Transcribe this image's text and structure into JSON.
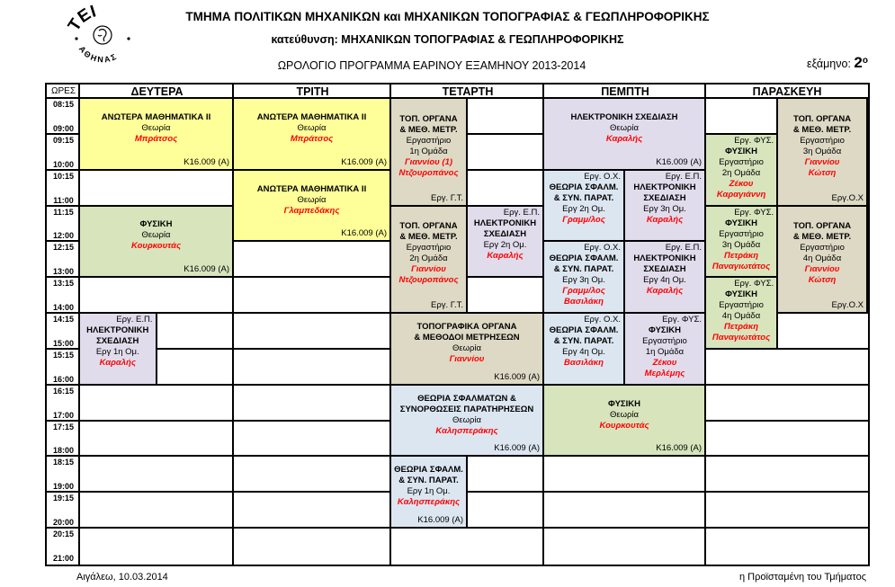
{
  "header": {
    "department_title": "ΤΜΗΜΑ ΠΟΛΙΤΙΚΩΝ ΜΗΧΑΝΙΚΩΝ και ΜΗΧΑΝΙΚΩΝ ΤΟΠΟΓΡΑΦΙΑΣ & ΓΕΩΠΛΗΡΟΦΟΡΙΚΗΣ",
    "direction_title": "κατεύθυνση: ΜΗΧΑΝΙΚΩΝ ΤΟΠΟΓΡΑΦΙΑΣ & ΓΕΩΠΛΗΡΟΦΟΡΙΚΗΣ",
    "schedule_title": "ΩΡΟΛΟΓΙΟ ΠΡΟΓΡΑΜΜΑ ΕΑΡΙΝΟΥ ΕΞΑΜΗΝΟΥ 2013-2014",
    "semester_label": "εξάμηνο:",
    "semester_number": "2",
    "semester_ordinal": "ο",
    "logo_top": "ΤΕΙ",
    "logo_bottom": "ΑΘΗΝΑΣ"
  },
  "table": {
    "hours_header": "ΩΡΕΣ",
    "days": [
      "ΔΕΥΤΕΡΑ",
      "ΤΡΙΤΗ",
      "ΤΕΤΑΡΤΗ",
      "ΠΕΜΠΤΗ",
      "ΠΑΡΑΣΚΕΥΗ"
    ],
    "slots": [
      [
        "08:15",
        "09:00"
      ],
      [
        "09:15",
        "10:00"
      ],
      [
        "10:15",
        "11:00"
      ],
      [
        "11:15",
        "12:00"
      ],
      [
        "12:15",
        "13:00"
      ],
      [
        "13:15",
        "14:00"
      ],
      [
        "14:15",
        "15:00"
      ],
      [
        "15:15",
        "16:00"
      ],
      [
        "16:15",
        "17:00"
      ],
      [
        "17:15",
        "18:00"
      ],
      [
        "18:15",
        "19:00"
      ],
      [
        "19:15",
        "20:00"
      ],
      [
        "20:15",
        "21:00"
      ]
    ],
    "colors": {
      "yellow": "#FFFF99",
      "green": "#D7E4BC",
      "tan": "#DDD9C4",
      "lavender": "#E1DCEC",
      "blue": "#DCE6F1"
    },
    "blocks": [
      {
        "day": 0,
        "start": 0,
        "len": 2,
        "pos": "full",
        "color": "yellow",
        "lines": [
          [
            "b",
            "ΑΝΩΤΕΡΑ ΜΑΘΗΜΑΤΙΚΑ II"
          ],
          [
            "n",
            "Θεωρία"
          ],
          [
            "r",
            "Μπράτσος"
          ]
        ],
        "br": "Κ16.009 (Α)"
      },
      {
        "day": 0,
        "start": 3,
        "len": 2,
        "pos": "full",
        "color": "green",
        "lines": [
          [
            "b",
            "ΦΥΣΙΚΗ"
          ],
          [
            "n",
            "Θεωρία"
          ],
          [
            "r",
            "Κουρκουτάς"
          ]
        ],
        "br": "Κ16.009 (Α)"
      },
      {
        "day": 0,
        "start": 6,
        "len": 2,
        "pos": "left",
        "color": "lavender",
        "tr": "Εργ. Ε.Π.",
        "lines": [
          [
            "b",
            "ΗΛΕΚΤΡΟΝΙΚΗ"
          ],
          [
            "b",
            "ΣΧΕΔΙΑΣΗ"
          ],
          [
            "n",
            "Εργ 1η Ομ."
          ],
          [
            "r",
            "Καραλής"
          ]
        ]
      },
      {
        "day": 1,
        "start": 0,
        "len": 2,
        "pos": "full",
        "color": "yellow",
        "lines": [
          [
            "b",
            "ΑΝΩΤΕΡΑ ΜΑΘΗΜΑΤΙΚΑ II"
          ],
          [
            "n",
            "Θεωρία"
          ],
          [
            "r",
            "Μπράτσος"
          ]
        ],
        "br": "Κ16.009 (Α)"
      },
      {
        "day": 1,
        "start": 2,
        "len": 2,
        "pos": "full",
        "color": "yellow",
        "lines": [
          [
            "b",
            "ΑΝΩΤΕΡΑ ΜΑΘΗΜΑΤΙΚΑ II"
          ],
          [
            "n",
            "Θεωρία"
          ],
          [
            "r",
            "Γλαμπεδάκης"
          ]
        ],
        "br": "Κ16.009 (Α)"
      },
      {
        "day": 2,
        "start": 0,
        "len": 3,
        "pos": "left",
        "color": "tan",
        "lines": [
          [
            "b",
            "ΤΟΠ. ΟΡΓΑΝΑ"
          ],
          [
            "b",
            "& ΜΕΘ. ΜΕΤΡ."
          ],
          [
            "n",
            "Εργαστήριο"
          ],
          [
            "n",
            "1η Ομάδα"
          ],
          [
            "r",
            "Γιαννίου (1)"
          ],
          [
            "r",
            "Ντζουροπάνος"
          ]
        ],
        "br": "Εργ. Γ.Τ."
      },
      {
        "day": 2,
        "start": 3,
        "len": 3,
        "pos": "left",
        "color": "tan",
        "lines": [
          [
            "b",
            "ΤΟΠ. ΟΡΓΑΝΑ"
          ],
          [
            "b",
            "& ΜΕΘ. ΜΕΤΡ."
          ],
          [
            "n",
            "Εργαστήριο"
          ],
          [
            "n",
            "2η Ομάδα"
          ],
          [
            "r",
            "Γιαννίου"
          ],
          [
            "r",
            "Ντζουροπάνος"
          ]
        ],
        "br": "Εργ. Γ.Τ."
      },
      {
        "day": 2,
        "start": 3,
        "len": 2,
        "pos": "right",
        "color": "lavender",
        "tr": "Εργ. Ε.Π.",
        "lines": [
          [
            "b",
            "ΗΛΕΚΤΡΟΝΙΚΗ"
          ],
          [
            "b",
            "ΣΧΕΔΙΑΣΗ"
          ],
          [
            "n",
            "Εργ 2η Ομ."
          ],
          [
            "r",
            "Καραλής"
          ]
        ]
      },
      {
        "day": 2,
        "start": 6,
        "len": 2,
        "pos": "full",
        "color": "tan",
        "lines": [
          [
            "b",
            "ΤΟΠΟΓΡΑΦΙΚΑ ΟΡΓΑΝΑ"
          ],
          [
            "b",
            "& ΜΕΘΟΔΟΙ ΜΕΤΡΗΣΕΩΝ"
          ],
          [
            "n",
            "Θεωρία"
          ],
          [
            "r",
            "Γιαννίου"
          ]
        ],
        "br": "Κ16.009 (Α)"
      },
      {
        "day": 2,
        "start": 8,
        "len": 2,
        "pos": "full",
        "color": "blue",
        "lines": [
          [
            "b",
            "ΘΕΩΡΙΑ ΣΦΑΛΜΑΤΩΝ &"
          ],
          [
            "b",
            "ΣΥΝΟΡΘΩΣΕΙΣ ΠΑΡΑΤΗΡΗΣΕΩΝ"
          ],
          [
            "n",
            "Θεωρία"
          ],
          [
            "r",
            "Καλησπεράκης"
          ]
        ],
        "br": "Κ16.009 (Α)"
      },
      {
        "day": 2,
        "start": 10,
        "len": 2,
        "pos": "left",
        "color": "blue",
        "lines": [
          [
            "b",
            "ΘΕΩΡΙΑ ΣΦΑΛΜ."
          ],
          [
            "b",
            "& ΣΥΝ.  ΠΑΡΑΤ."
          ],
          [
            "n",
            "Εργ 1η Ομ."
          ],
          [
            "r",
            "Καλησπεράκης"
          ]
        ],
        "br": "Κ16.009 (Α)"
      },
      {
        "day": 3,
        "start": 0,
        "len": 2,
        "pos": "full",
        "color": "lavender",
        "lines": [
          [
            "b",
            "ΗΛΕΚΤΡΟΝΙΚΗ ΣΧΕΔΙΑΣΗ"
          ],
          [
            "n",
            "Θεωρία"
          ],
          [
            "r",
            "Καραλής"
          ]
        ],
        "br": "Κ16.009 (Α)"
      },
      {
        "day": 3,
        "start": 2,
        "len": 2,
        "pos": "left",
        "color": "blue",
        "tr": "Εργ. Ο.Χ.",
        "lines": [
          [
            "b",
            "ΘΕΩΡΙΑ ΣΦΑΛΜ."
          ],
          [
            "b",
            "& ΣΥΝ.  ΠΑΡΑΤ."
          ],
          [
            "n",
            "Εργ 2η Ομ."
          ],
          [
            "r",
            "Γραμμ/λος"
          ]
        ]
      },
      {
        "day": 3,
        "start": 2,
        "len": 2,
        "pos": "right",
        "color": "lavender",
        "tr": "Εργ. Ε.Π.",
        "lines": [
          [
            "b",
            "ΗΛΕΚΤΡΟΝΙΚΗ"
          ],
          [
            "b",
            "ΣΧΕΔΙΑΣΗ"
          ],
          [
            "n",
            "Εργ 3η Ομ."
          ],
          [
            "r",
            "Καραλής"
          ]
        ]
      },
      {
        "day": 3,
        "start": 4,
        "len": 2,
        "pos": "left",
        "color": "blue",
        "tr": "Εργ. Ο.Χ.",
        "lines": [
          [
            "b",
            "ΘΕΩΡΙΑ ΣΦΑΛΜ."
          ],
          [
            "b",
            "& ΣΥΝ.  ΠΑΡΑΤ."
          ],
          [
            "n",
            "Εργ 3η Ομ."
          ],
          [
            "r",
            "Γραμμ/λος"
          ],
          [
            "r",
            "Βασιλάκη"
          ]
        ]
      },
      {
        "day": 3,
        "start": 4,
        "len": 2,
        "pos": "right",
        "color": "lavender",
        "tr": "Εργ. Ε.Π.",
        "lines": [
          [
            "b",
            "ΗΛΕΚΤΡΟΝΙΚΗ"
          ],
          [
            "b",
            "ΣΧΕΔΙΑΣΗ"
          ],
          [
            "n",
            "Εργ 4η Ομ."
          ],
          [
            "r",
            "Καραλής"
          ]
        ]
      },
      {
        "day": 3,
        "start": 6,
        "len": 2,
        "pos": "left",
        "color": "blue",
        "tr": "Εργ. Ο.Χ.",
        "lines": [
          [
            "b",
            "ΘΕΩΡΙΑ ΣΦΑΛΜ."
          ],
          [
            "b",
            "& ΣΥΝ.  ΠΑΡΑΤ."
          ],
          [
            "n",
            "Εργ 4η Ομ."
          ],
          [
            "r",
            "Βασιλάκη"
          ]
        ]
      },
      {
        "day": 3,
        "start": 6,
        "len": 2,
        "pos": "right",
        "color": "lavender",
        "tr": "Εργ. ΦΥΣ.",
        "lines": [
          [
            "b",
            "ΦΥΣΙΚΗ"
          ],
          [
            "n",
            "Εργαστήριο"
          ],
          [
            "n",
            "1η Ομάδα"
          ],
          [
            "r",
            "Ζέκου"
          ],
          [
            "r",
            "Μερλέμης"
          ]
        ]
      },
      {
        "day": 3,
        "start": 8,
        "len": 2,
        "pos": "full",
        "color": "green",
        "lines": [
          [
            "b",
            "ΦΥΣΙΚΗ"
          ],
          [
            "n",
            "Θεωρία"
          ],
          [
            "r",
            "Κουρκουτάς"
          ]
        ],
        "br": "Κ16.009 (Α)"
      },
      {
        "day": 4,
        "start": 0,
        "len": 3,
        "pos": "right",
        "color": "tan",
        "lines": [
          [
            "b",
            "ΤΟΠ. ΟΡΓΑΝΑ"
          ],
          [
            "b",
            "& ΜΕΘ. ΜΕΤΡ."
          ],
          [
            "n",
            "Εργαστήριο"
          ],
          [
            "n",
            "3η Ομάδα"
          ],
          [
            "r",
            "Γιαννίου"
          ],
          [
            "r",
            "Κώτση"
          ]
        ],
        "br": "Εργ.Ο.Χ"
      },
      {
        "day": 4,
        "start": 1,
        "len": 2,
        "pos": "left",
        "color": "green",
        "tr": "Εργ. ΦΥΣ.",
        "lines": [
          [
            "b",
            "ΦΥΣΙΚΗ"
          ],
          [
            "n",
            "Εργαστήριο"
          ],
          [
            "n",
            "2η Ομάδα"
          ],
          [
            "r",
            "Ζέκου"
          ],
          [
            "r",
            "Καραγιάννη"
          ]
        ]
      },
      {
        "day": 4,
        "start": 3,
        "len": 2,
        "pos": "left",
        "color": "green",
        "tr": "Εργ. ΦΥΣ.",
        "lines": [
          [
            "b",
            "ΦΥΣΙΚΗ"
          ],
          [
            "n",
            "Εργαστήριο"
          ],
          [
            "n",
            "3η Ομάδα"
          ],
          [
            "r",
            "Πετράκη"
          ],
          [
            "r",
            "Παναγιωτάτος"
          ]
        ]
      },
      {
        "day": 4,
        "start": 3,
        "len": 3,
        "pos": "right",
        "color": "tan",
        "lines": [
          [
            "b",
            "ΤΟΠ. ΟΡΓΑΝΑ"
          ],
          [
            "b",
            "& ΜΕΘ. ΜΕΤΡ."
          ],
          [
            "n",
            "Εργαστήριο"
          ],
          [
            "n",
            "4η Ομάδα"
          ],
          [
            "r",
            "Γιαννίου"
          ],
          [
            "r",
            "Κώτση"
          ]
        ],
        "br": "Εργ.Ο.Χ"
      },
      {
        "day": 4,
        "start": 5,
        "len": 2,
        "pos": "left",
        "color": "green",
        "tr": "Εργ. ΦΥΣ.",
        "lines": [
          [
            "b",
            "ΦΥΣΙΚΗ"
          ],
          [
            "n",
            "Εργαστήριο"
          ],
          [
            "n",
            "4η Ομάδα"
          ],
          [
            "r",
            "Πετράκη"
          ],
          [
            "r",
            "Παναγιωτάτος"
          ]
        ]
      }
    ]
  },
  "footer": {
    "place_date": "Αιγάλεω, 10.03.2014",
    "signature": "η Προϊσταμένη του Τμήματος"
  }
}
